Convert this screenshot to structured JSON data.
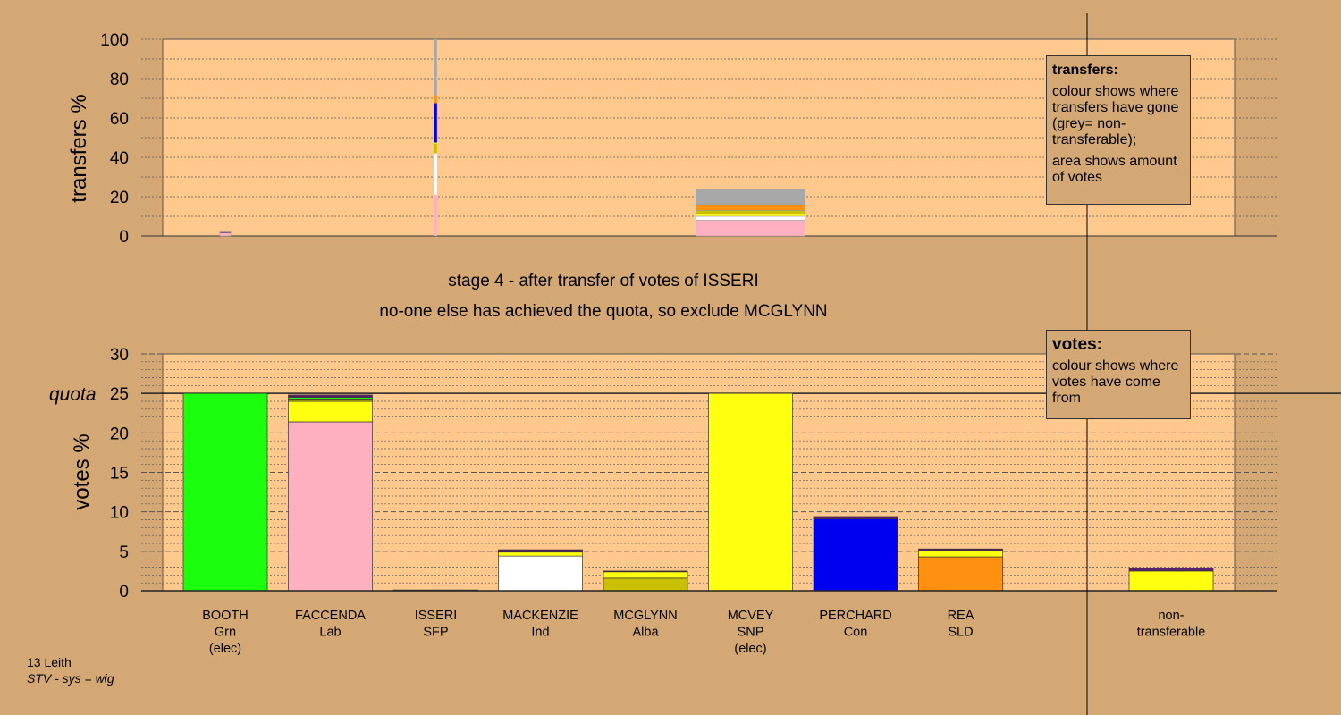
{
  "stage": {
    "line1": "stage 4 - after transfer of votes of ISSERI",
    "line2": "no-one else has achieved the quota, so exclude MCGLYNN"
  },
  "legends": {
    "transfers": {
      "title": "transfers:",
      "text1": "colour shows where transfers have gone (grey= non-transferable);",
      "text2": "area shows amount of votes"
    },
    "votes": {
      "title": "votes:",
      "text1": "colour shows where votes have come from"
    }
  },
  "footer": {
    "ward": "13 Leith",
    "system": "STV - sys = wig"
  },
  "colors": {
    "background": "#d4a874",
    "plot_bg": "#ffc98e",
    "Grn": "#1bff0e",
    "Lab": "#ffb0c0",
    "Ind": "#ffffff",
    "Alba": "#c8c000",
    "SNP": "#ffff10",
    "Con": "#0000f0",
    "SLD": "#ff9010",
    "SFP": "#5a2070",
    "NT": "#a8a8a8"
  },
  "chart_data": [
    {
      "type": "bar",
      "name": "transfers",
      "ylabel": "transfers %",
      "ylim": [
        0,
        100
      ],
      "yticks": [
        0,
        20,
        40,
        60,
        80,
        100
      ],
      "description_note": "",
      "bars": [
        {
          "candidate": "BOOTH",
          "width_votes": 0.1,
          "segments": [
            {
              "party": "Lab",
              "value": 1.5
            },
            {
              "party": "SFP",
              "value": 0.5
            }
          ]
        },
        {
          "candidate": "ISSERI",
          "width_votes": 0.03,
          "segments": [
            {
              "party": "Lab",
              "value": 21
            },
            {
              "party": "Ind",
              "value": 21
            },
            {
              "party": "Alba",
              "value": 5
            },
            {
              "party": "SNP",
              "value": 0.5
            },
            {
              "party": "Con",
              "value": 20
            },
            {
              "party": "SLD",
              "value": 4
            },
            {
              "party": "NT",
              "value": 28.5
            }
          ]
        },
        {
          "candidate": "MCVEY",
          "width_votes": 1.0,
          "segments": [
            {
              "party": "Lab",
              "value": 8
            },
            {
              "party": "Ind",
              "value": 2
            },
            {
              "party": "SNP",
              "value": 1
            },
            {
              "party": "Alba",
              "value": 2
            },
            {
              "party": "SLD",
              "value": 3
            },
            {
              "party": "NT",
              "value": 8
            }
          ]
        }
      ]
    },
    {
      "type": "bar",
      "name": "votes",
      "ylabel": "votes %",
      "ylim": [
        0,
        30
      ],
      "yticks": [
        0,
        5,
        10,
        15,
        20,
        25,
        30
      ],
      "quota": 25,
      "quota_label": "quota",
      "categories": [
        {
          "name": "BOOTH",
          "party": "Grn",
          "note": "(elec)"
        },
        {
          "name": "FACCENDA",
          "party": "Lab",
          "note": ""
        },
        {
          "name": "ISSERI",
          "party": "SFP",
          "note": ""
        },
        {
          "name": "MACKENZIE",
          "party": "Ind",
          "note": ""
        },
        {
          "name": "MCGLYNN",
          "party": "Alba",
          "note": ""
        },
        {
          "name": "MCVEY",
          "party": "SNP",
          "note": "(elec)"
        },
        {
          "name": "PERCHARD",
          "party": "Con",
          "note": ""
        },
        {
          "name": "REA",
          "party": "SLD",
          "note": ""
        },
        {
          "name": "",
          "party": "",
          "note": ""
        },
        {
          "name": "non-",
          "party": "transferable",
          "note": ""
        }
      ],
      "stacks": [
        [
          {
            "party": "Grn",
            "value": 25
          }
        ],
        [
          {
            "party": "Lab",
            "value": 21.4
          },
          {
            "party": "SNP",
            "value": 2.6
          },
          {
            "party": "Alba",
            "value": 0.3
          },
          {
            "party": "Grn",
            "value": 0.2
          },
          {
            "party": "SFP",
            "value": 0.3
          }
        ],
        [
          {
            "party": "SFP",
            "value": 0.1
          }
        ],
        [
          {
            "party": "Ind",
            "value": 4.4
          },
          {
            "party": "SNP",
            "value": 0.5
          },
          {
            "party": "SFP",
            "value": 0.3
          }
        ],
        [
          {
            "party": "Alba",
            "value": 1.6
          },
          {
            "party": "SNP",
            "value": 0.8
          },
          {
            "party": "SFP",
            "value": 0.1
          }
        ],
        [
          {
            "party": "SNP",
            "value": 25
          }
        ],
        [
          {
            "party": "Con",
            "value": 9.1
          },
          {
            "party": "SFP",
            "value": 0.3
          }
        ],
        [
          {
            "party": "SLD",
            "value": 4.3
          },
          {
            "party": "SNP",
            "value": 0.8
          },
          {
            "party": "SFP",
            "value": 0.2
          }
        ],
        [],
        [
          {
            "party": "SNP",
            "value": 2.5
          },
          {
            "party": "SFP",
            "value": 0.4
          }
        ]
      ]
    }
  ]
}
